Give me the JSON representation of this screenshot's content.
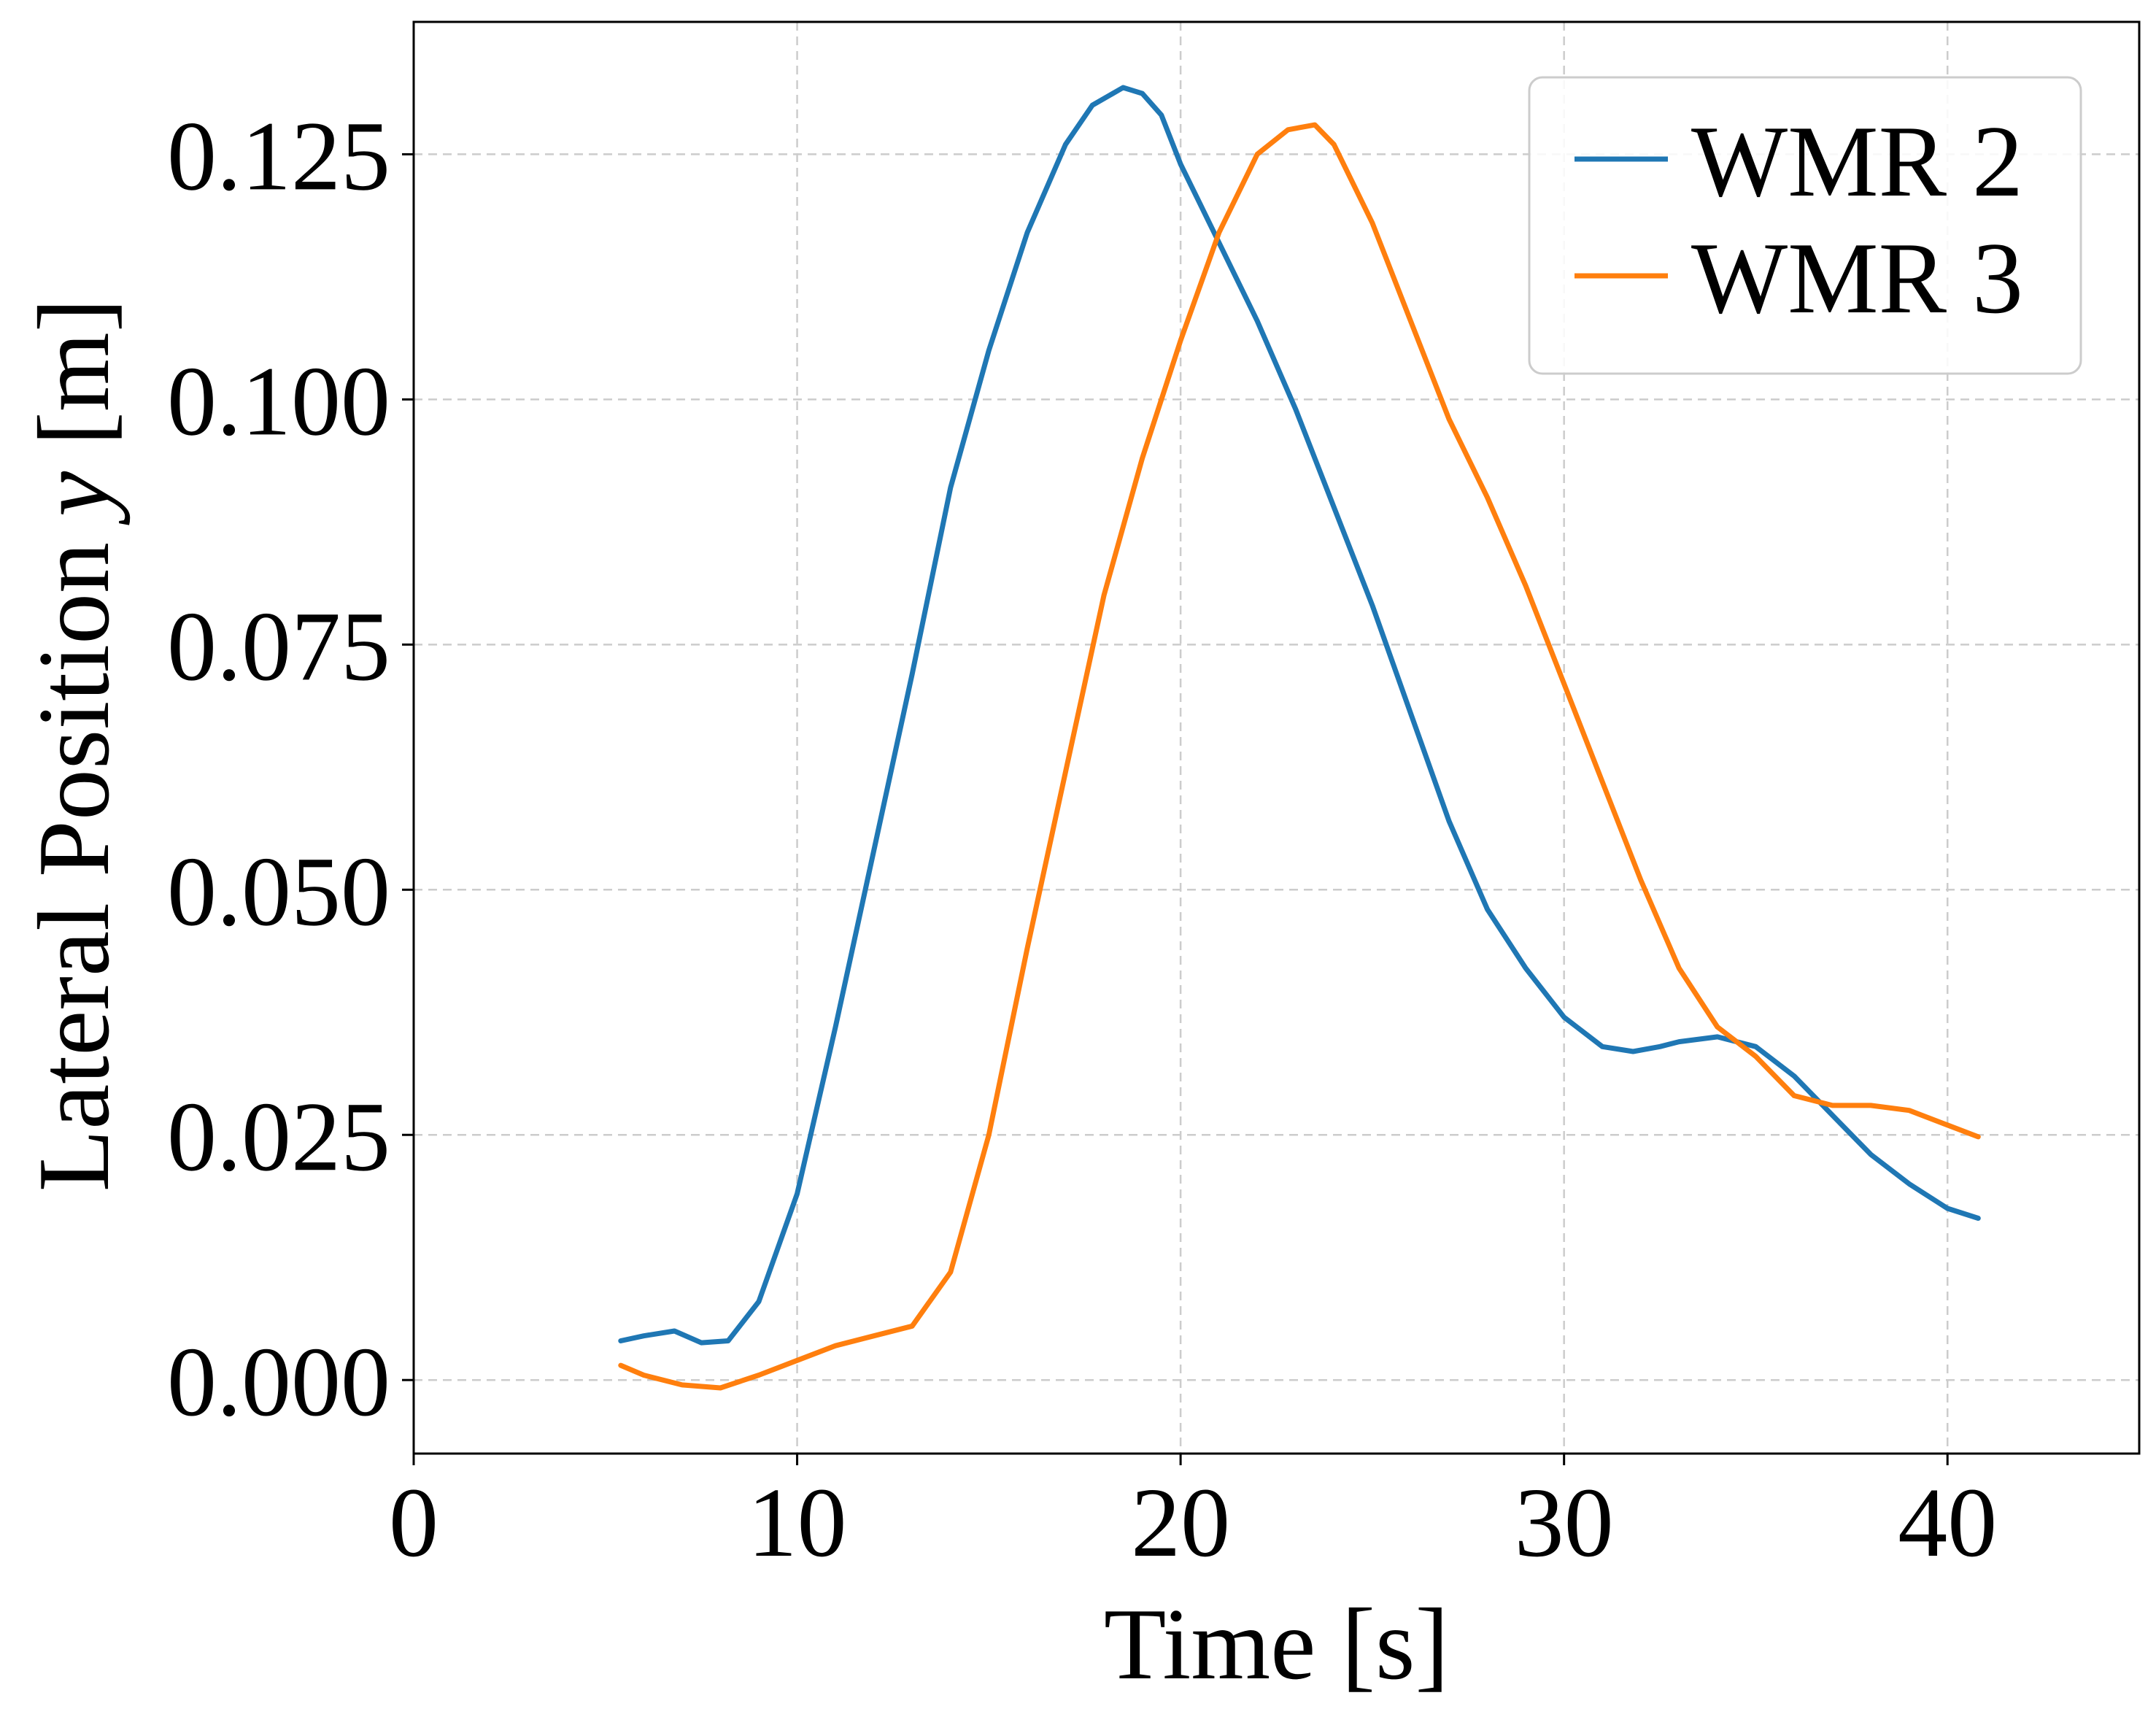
{
  "chart_data": {
    "type": "line",
    "title": "",
    "xlabel": "Time [s]",
    "ylabel_main": "Lateral Position ",
    "ylabel_var": "y",
    "ylabel_unit": " [m]",
    "xlim": [
      0,
      45
    ],
    "ylim": [
      -0.0075,
      0.1385
    ],
    "xticks": [
      0,
      10,
      20,
      30,
      40
    ],
    "xtick_labels": [
      "0",
      "10",
      "20",
      "30",
      "40"
    ],
    "yticks": [
      0.0,
      0.025,
      0.05,
      0.075,
      0.1,
      0.125
    ],
    "ytick_labels": [
      "0.000",
      "0.025",
      "0.050",
      "0.075",
      "0.100",
      "0.125"
    ],
    "grid": true,
    "legend_position": "upper right",
    "series": [
      {
        "name": "WMR 2",
        "color": "#1f77b4",
        "x": [
          5.4,
          6.0,
          6.8,
          7.5,
          8.2,
          9.0,
          10.0,
          11.0,
          12.0,
          13.0,
          14.0,
          15.0,
          16.0,
          17.0,
          17.7,
          18.5,
          19.0,
          19.5,
          20.0,
          20.5,
          21.0,
          22.0,
          23.0,
          24.0,
          25.0,
          26.0,
          27.0,
          28.0,
          29.0,
          30.0,
          31.0,
          31.8,
          32.5,
          33.0,
          34.0,
          35.0,
          36.0,
          37.0,
          38.0,
          39.0,
          40.0,
          40.8
        ],
        "y": [
          0.004,
          0.0045,
          0.005,
          0.0038,
          0.004,
          0.008,
          0.019,
          0.036,
          0.054,
          0.072,
          0.091,
          0.105,
          0.117,
          0.126,
          0.13,
          0.1318,
          0.1312,
          0.129,
          0.124,
          0.12,
          0.116,
          0.108,
          0.099,
          0.089,
          0.079,
          0.068,
          0.057,
          0.048,
          0.042,
          0.037,
          0.034,
          0.0335,
          0.034,
          0.0345,
          0.035,
          0.034,
          0.031,
          0.027,
          0.023,
          0.02,
          0.0175,
          0.0165
        ]
      },
      {
        "name": "WMR 3",
        "color": "#ff7f0e",
        "x": [
          5.4,
          6.0,
          7.0,
          8.0,
          9.0,
          10.0,
          11.0,
          12.0,
          13.0,
          14.0,
          15.0,
          16.0,
          17.0,
          18.0,
          19.0,
          20.0,
          21.0,
          22.0,
          22.8,
          23.5,
          24.0,
          25.0,
          26.0,
          27.0,
          28.0,
          29.0,
          30.0,
          31.0,
          32.0,
          33.0,
          34.0,
          35.0,
          36.0,
          37.0,
          38.0,
          39.0,
          40.0,
          40.8
        ],
        "y": [
          0.0015,
          0.0005,
          -0.0005,
          -0.0008,
          0.0005,
          0.002,
          0.0035,
          0.0045,
          0.0055,
          0.011,
          0.025,
          0.044,
          0.062,
          0.08,
          0.094,
          0.106,
          0.117,
          0.125,
          0.1275,
          0.128,
          0.126,
          0.118,
          0.108,
          0.098,
          0.09,
          0.081,
          0.071,
          0.061,
          0.051,
          0.042,
          0.036,
          0.033,
          0.029,
          0.028,
          0.028,
          0.0275,
          0.026,
          0.0248
        ]
      }
    ]
  }
}
